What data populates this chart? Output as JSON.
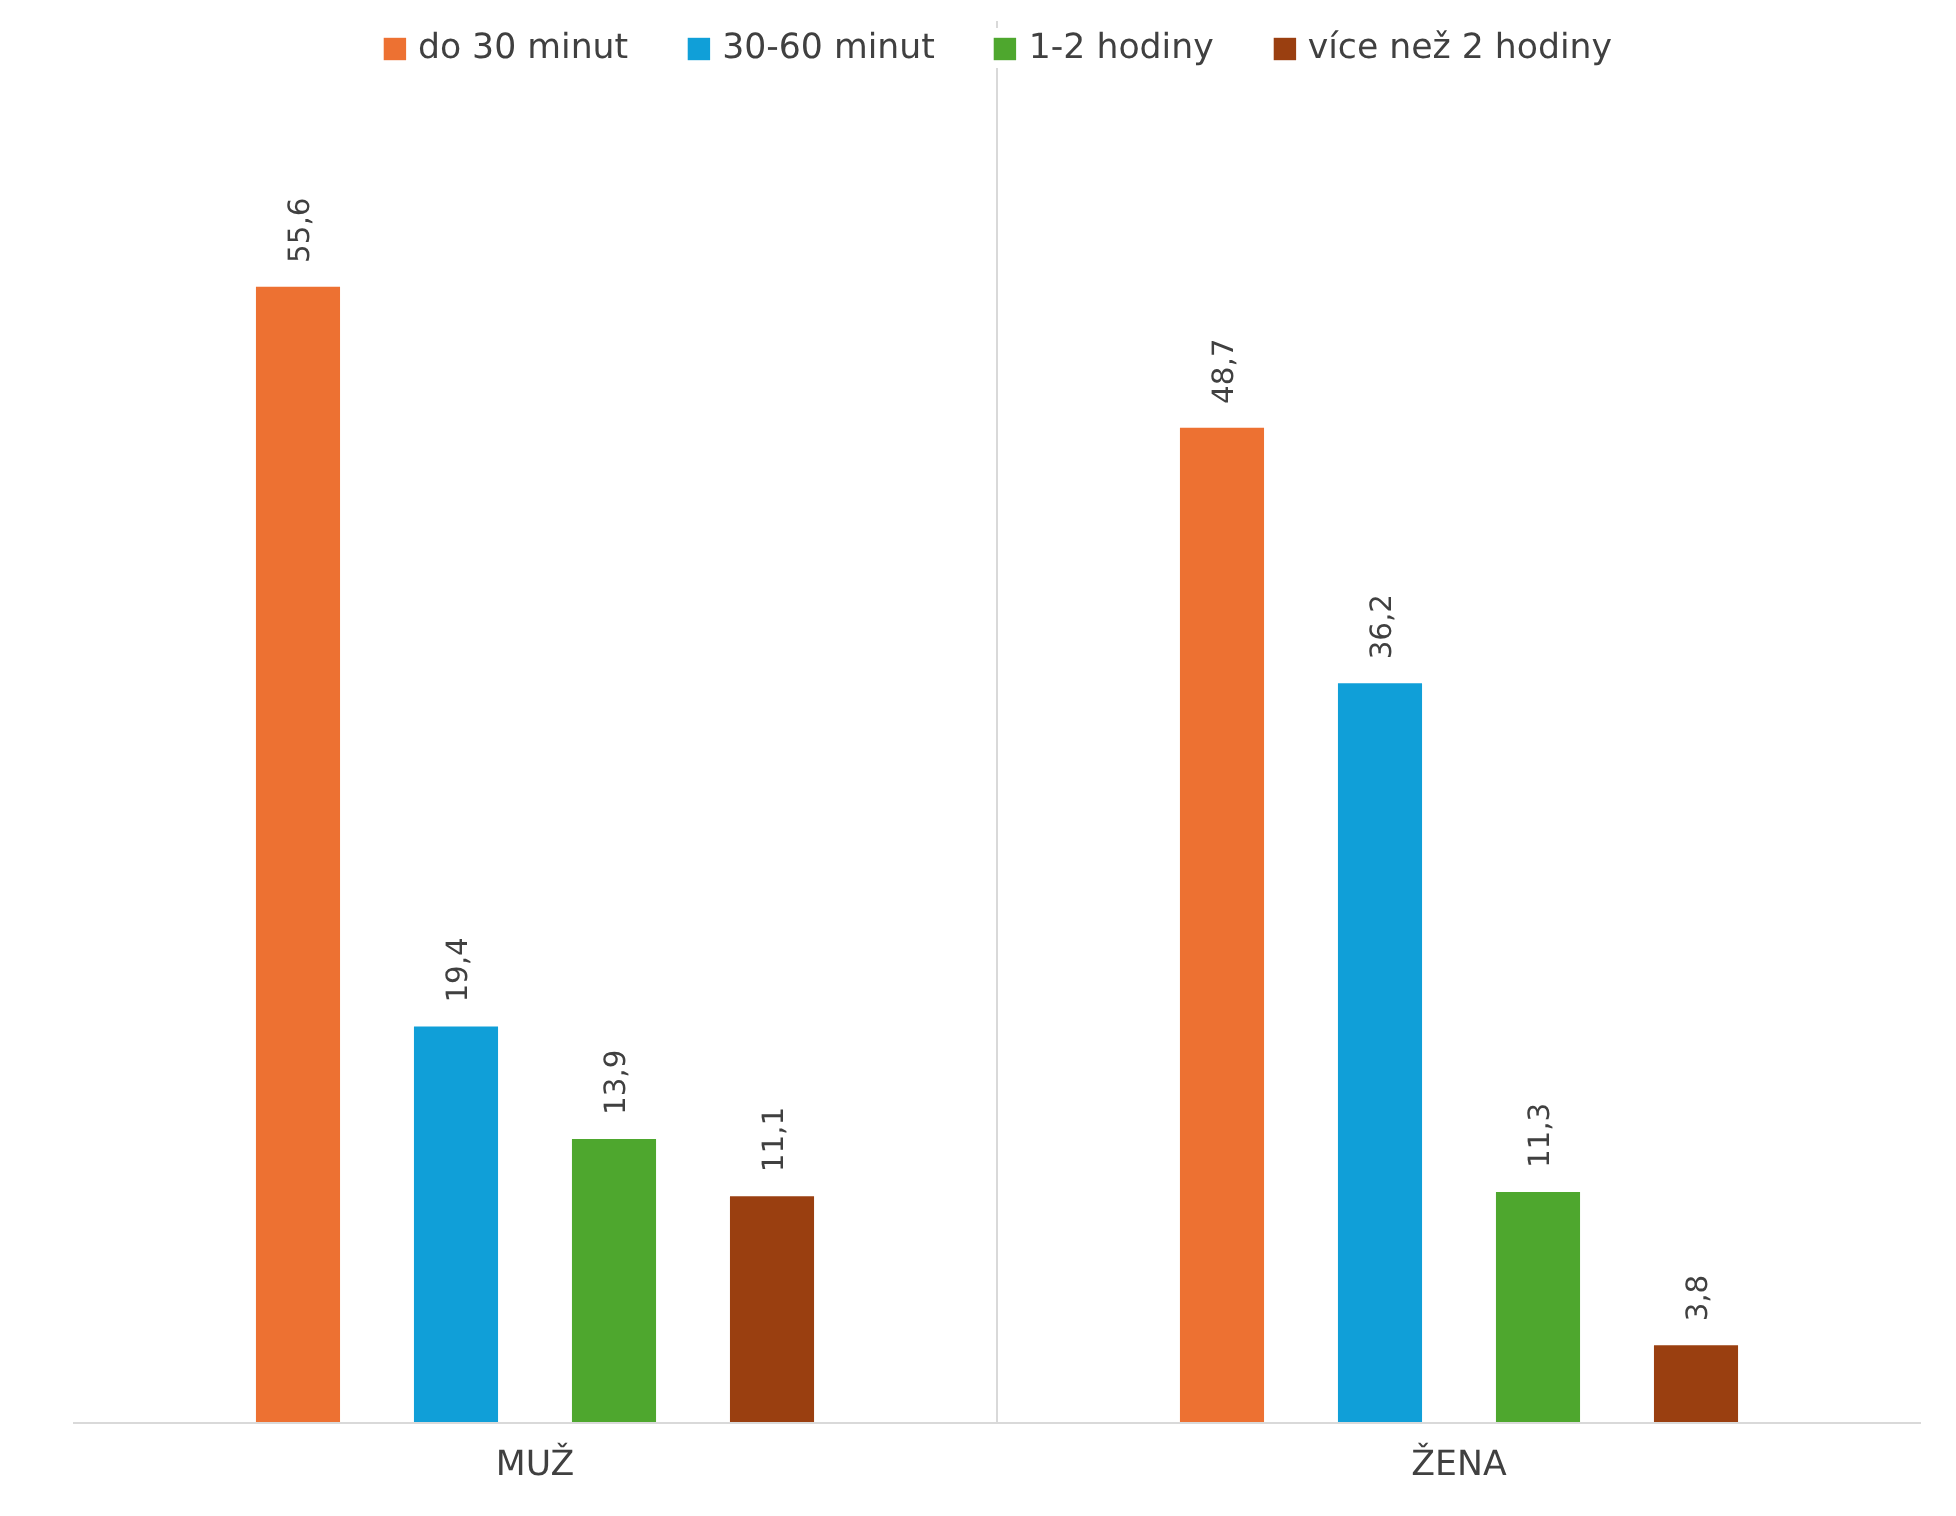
{
  "chart_data": {
    "type": "bar",
    "categories": [
      "MUŽ",
      "ŽENA"
    ],
    "series": [
      {
        "name": "do 30 minut",
        "color": "#ed7132",
        "values": [
          55.6,
          48.7
        ],
        "value_labels": [
          "55,6",
          "48,7"
        ]
      },
      {
        "name": "30-60 minut",
        "color": "#109fd8",
        "values": [
          19.4,
          36.2
        ],
        "value_labels": [
          "19,4",
          "36,2"
        ]
      },
      {
        "name": "1-2 hodiny",
        "color": "#4ea72e",
        "values": [
          13.9,
          11.3
        ],
        "value_labels": [
          "13,9",
          "11,3"
        ]
      },
      {
        "name": "více než 2 hodiny",
        "color": "#9a3f10",
        "values": [
          11.1,
          3.8
        ],
        "value_labels": [
          "11,1",
          "3,8"
        ]
      }
    ],
    "grid": "x",
    "legend": "top"
  }
}
